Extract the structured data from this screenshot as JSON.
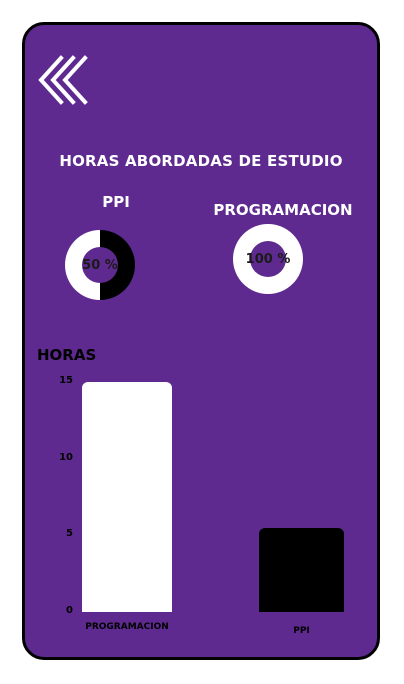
{
  "screen": {
    "title": "HORAS ABORDADAS DE ESTUDIO",
    "back_icon": "double-chevron-left-icon",
    "ylabel": "HORAS"
  },
  "donuts": [
    {
      "label": "PPI",
      "percent_text": "50 %",
      "percent": 50,
      "color": "#000000"
    },
    {
      "label": "PROGRAMACION",
      "percent_text": "100 %",
      "percent": 100,
      "color": "#ffffff"
    }
  ],
  "colors": {
    "background": "#5e2a8f",
    "accent_white": "#ffffff",
    "accent_black": "#000000"
  },
  "chart_data": {
    "type": "bar",
    "categories": [
      "PROGRAMACION",
      "PPI"
    ],
    "values": [
      15,
      5.5
    ],
    "colors": [
      "#ffffff",
      "#000000"
    ],
    "ylabel": "HORAS",
    "yticks": [
      0,
      5,
      10,
      15
    ],
    "ylim": [
      0,
      15
    ]
  }
}
